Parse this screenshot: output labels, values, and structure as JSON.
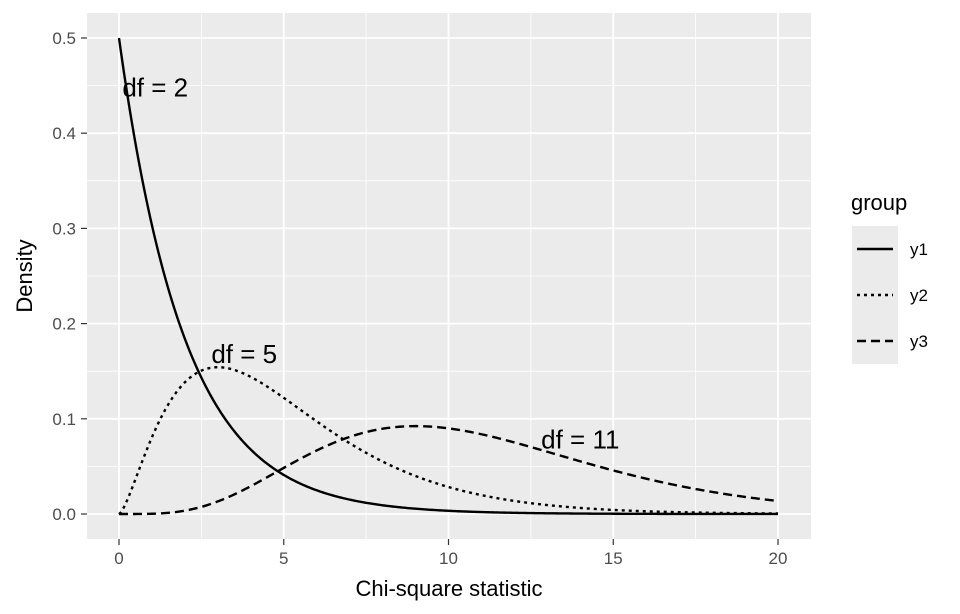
{
  "chart_data": {
    "type": "line",
    "xlabel": "Chi-square statistic",
    "ylabel": "Density",
    "xlim": [
      0,
      20
    ],
    "ylim": [
      0,
      0.5
    ],
    "x_ticks": [
      0,
      5,
      10,
      15,
      20
    ],
    "y_ticks": [
      0.0,
      0.1,
      0.2,
      0.3,
      0.4,
      0.5
    ],
    "x_tick_labels": [
      "0",
      "5",
      "10",
      "15",
      "20"
    ],
    "y_tick_labels": [
      "0.0",
      "0.1",
      "0.2",
      "0.3",
      "0.4",
      "0.5"
    ],
    "grid": true,
    "legend": {
      "title": "group",
      "position": "right",
      "entries": [
        {
          "label": "y1",
          "linetype": "solid"
        },
        {
          "label": "y2",
          "linetype": "dotted"
        },
        {
          "label": "y3",
          "linetype": "dashed"
        }
      ]
    },
    "series": [
      {
        "name": "y1",
        "df": 2,
        "linetype": "solid"
      },
      {
        "name": "y2",
        "df": 5,
        "linetype": "dotted"
      },
      {
        "name": "y3",
        "df": 11,
        "linetype": "dashed"
      }
    ],
    "annotations": [
      {
        "text": "df = 2",
        "x": 1.1,
        "y": 0.448
      },
      {
        "text": "df = 5",
        "x": 3.8,
        "y": 0.168
      },
      {
        "text": "df = 11",
        "x": 14,
        "y": 0.078
      }
    ],
    "colors": {
      "panel": "#ebebeb",
      "grid": "#ffffff",
      "line": "#000000"
    }
  }
}
